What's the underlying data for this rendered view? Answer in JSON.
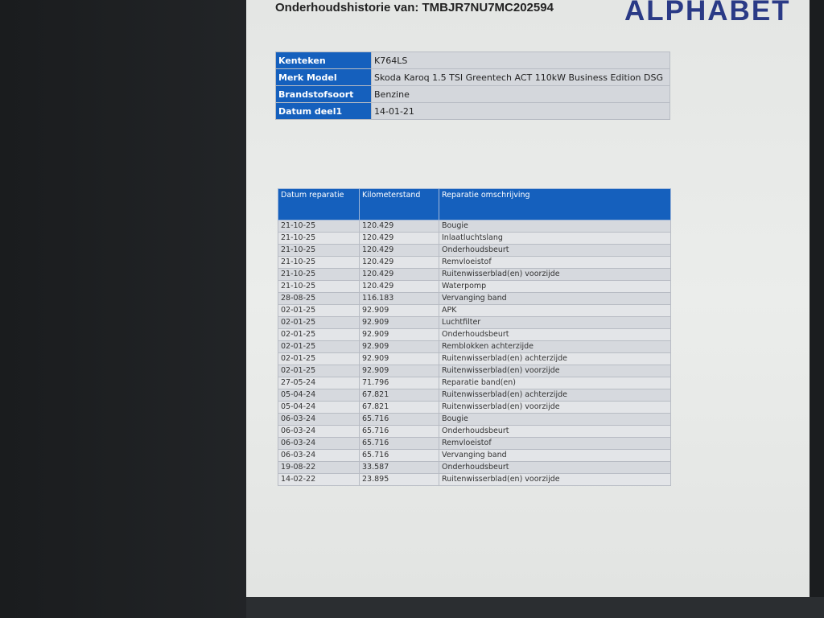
{
  "document": {
    "title": "Onderhoudshistorie van: TMBJR7NU7MC202594",
    "logo_text": "ALPHABET",
    "vehicle_info": [
      {
        "label": "Kenteken",
        "value": "K764LS"
      },
      {
        "label": "Merk Model",
        "value": "Skoda Karoq 1.5 TSI Greentech ACT 110kW Business Edition DSG"
      },
      {
        "label": "Brandstofsoort",
        "value": "Benzine"
      },
      {
        "label": "Datum deel1",
        "value": "14-01-21"
      }
    ],
    "history": {
      "headers": [
        "Datum reparatie",
        "Kilometerstand",
        "Reparatie omschrijving"
      ],
      "rows": [
        [
          "21-10-25",
          "120.429",
          "Bougie"
        ],
        [
          "21-10-25",
          "120.429",
          "Inlaatluchtslang"
        ],
        [
          "21-10-25",
          "120.429",
          "Onderhoudsbeurt"
        ],
        [
          "21-10-25",
          "120.429",
          "Remvloeistof"
        ],
        [
          "21-10-25",
          "120.429",
          "Ruitenwisserblad(en) voorzijde"
        ],
        [
          "21-10-25",
          "120.429",
          "Waterpomp"
        ],
        [
          "28-08-25",
          "116.183",
          "Vervanging band"
        ],
        [
          "02-01-25",
          "92.909",
          "APK"
        ],
        [
          "02-01-25",
          "92.909",
          "Luchtfilter"
        ],
        [
          "02-01-25",
          "92.909",
          "Onderhoudsbeurt"
        ],
        [
          "02-01-25",
          "92.909",
          "Remblokken achterzijde"
        ],
        [
          "02-01-25",
          "92.909",
          "Ruitenwisserblad(en) achterzijde"
        ],
        [
          "02-01-25",
          "92.909",
          "Ruitenwisserblad(en) voorzijde"
        ],
        [
          "27-05-24",
          "71.796",
          "Reparatie band(en)"
        ],
        [
          "05-04-24",
          "67.821",
          "Ruitenwisserblad(en) achterzijde"
        ],
        [
          "05-04-24",
          "67.821",
          "Ruitenwisserblad(en) voorzijde"
        ],
        [
          "06-03-24",
          "65.716",
          "Bougie"
        ],
        [
          "06-03-24",
          "65.716",
          "Onderhoudsbeurt"
        ],
        [
          "06-03-24",
          "65.716",
          "Remvloeistof"
        ],
        [
          "06-03-24",
          "65.716",
          "Vervanging band"
        ],
        [
          "19-08-22",
          "33.587",
          "Onderhoudsbeurt"
        ],
        [
          "14-02-22",
          "23.895",
          "Ruitenwisserblad(en) voorzijde"
        ]
      ]
    },
    "colors": {
      "header_blue": "#1560bd",
      "logo": "#2a3a86"
    }
  }
}
